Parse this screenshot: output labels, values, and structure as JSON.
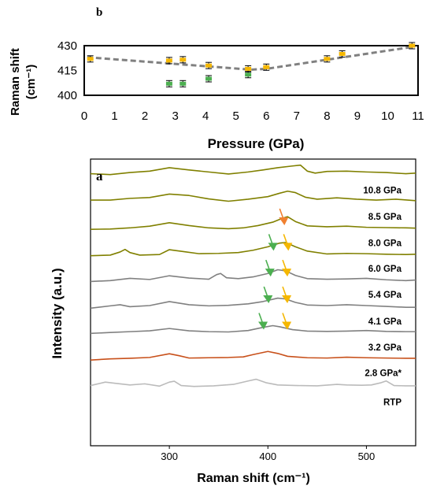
{
  "chart_data": [
    {
      "panel": "b",
      "type": "scatter",
      "xlabel": "Pressure (GPa)",
      "ylabel": "Raman shift (cm⁻¹)",
      "ylabel_line1": "Raman shift",
      "ylabel_line2": "(cm⁻¹)",
      "xlim": [
        0,
        11
      ],
      "ylim": [
        400,
        430
      ],
      "xticks": [
        0,
        1,
        2,
        3,
        4,
        5,
        6,
        7,
        8,
        9,
        10,
        11
      ],
      "yticks": [
        400,
        415,
        430
      ],
      "series": [
        {
          "color": "#f5b700",
          "marker": "square-errorbar",
          "points": [
            [
              0.2,
              422
            ],
            [
              2.8,
              421
            ],
            [
              3.25,
              421.5
            ],
            [
              4.1,
              418
            ],
            [
              5.4,
              416
            ],
            [
              6.0,
              417
            ],
            [
              8.0,
              422
            ],
            [
              8.5,
              425
            ],
            [
              10.8,
              430
            ]
          ]
        },
        {
          "color": "#4caf50",
          "marker": "square-errorbar",
          "points": [
            [
              2.8,
              407
            ],
            [
              3.25,
              407
            ],
            [
              4.1,
              410
            ],
            [
              5.4,
              412.5
            ]
          ]
        }
      ],
      "trend_line": {
        "color": "#808080",
        "style": "dashed",
        "points": [
          [
            0.1,
            423
          ],
          [
            5.5,
            415.5
          ],
          [
            6.0,
            416
          ],
          [
            10.9,
            429.5
          ]
        ]
      }
    },
    {
      "panel": "a",
      "type": "line",
      "xlabel": "Raman shift (cm⁻¹)",
      "ylabel": "Intensity (a.u.)",
      "xlim": [
        220,
        550
      ],
      "xticks": [
        300,
        400,
        500
      ],
      "series": [
        {
          "name": "10.8 GPa",
          "color": "#808000",
          "baseline": 0.935,
          "points": [
            [
              220,
              0.949
            ],
            [
              240,
              0.946
            ],
            [
              260,
              0.953
            ],
            [
              280,
              0.958
            ],
            [
              300,
              0.97
            ],
            [
              320,
              0.962
            ],
            [
              340,
              0.955
            ],
            [
              360,
              0.948
            ],
            [
              380,
              0.955
            ],
            [
              395,
              0.962
            ],
            [
              410,
              0.97
            ],
            [
              425,
              0.976
            ],
            [
              433,
              0.979
            ],
            [
              440,
              0.958
            ],
            [
              448,
              0.951
            ],
            [
              460,
              0.957
            ],
            [
              480,
              0.958
            ],
            [
              500,
              0.955
            ],
            [
              520,
              0.953
            ],
            [
              540,
              0.949
            ],
            [
              550,
              0.951
            ]
          ]
        },
        {
          "name": "8.5 GPa",
          "color": "#808000",
          "baseline": 0.843,
          "points": [
            [
              220,
              0.857
            ],
            [
              240,
              0.857
            ],
            [
              260,
              0.863
            ],
            [
              280,
              0.866
            ],
            [
              300,
              0.878
            ],
            [
              320,
              0.873
            ],
            [
              340,
              0.861
            ],
            [
              360,
              0.853
            ],
            [
              380,
              0.86
            ],
            [
              400,
              0.869
            ],
            [
              412,
              0.881
            ],
            [
              420,
              0.888
            ],
            [
              428,
              0.883
            ],
            [
              438,
              0.867
            ],
            [
              450,
              0.86
            ],
            [
              470,
              0.865
            ],
            [
              490,
              0.86
            ],
            [
              510,
              0.857
            ],
            [
              530,
              0.86
            ],
            [
              550,
              0.855
            ]
          ]
        },
        {
          "name": "8.0 GPa",
          "color": "#808000",
          "baseline": 0.752,
          "points": [
            [
              220,
              0.755
            ],
            [
              240,
              0.756
            ],
            [
              260,
              0.76
            ],
            [
              280,
              0.766
            ],
            [
              300,
              0.778
            ],
            [
              320,
              0.768
            ],
            [
              340,
              0.76
            ],
            [
              360,
              0.757
            ],
            [
              375,
              0.76
            ],
            [
              390,
              0.768
            ],
            [
              405,
              0.78
            ],
            [
              415,
              0.794
            ],
            [
              420,
              0.799
            ],
            [
              428,
              0.782
            ],
            [
              440,
              0.767
            ],
            [
              460,
              0.764
            ],
            [
              480,
              0.766
            ],
            [
              500,
              0.762
            ],
            [
              520,
              0.761
            ],
            [
              540,
              0.76
            ],
            [
              550,
              0.759
            ]
          ]
        },
        {
          "name": "6.0 GPa",
          "color": "#808000",
          "baseline": 0.662,
          "points": [
            [
              220,
              0.663
            ],
            [
              240,
              0.665
            ],
            [
              250,
              0.676
            ],
            [
              255,
              0.685
            ],
            [
              260,
              0.674
            ],
            [
              270,
              0.665
            ],
            [
              290,
              0.667
            ],
            [
              300,
              0.684
            ],
            [
              315,
              0.677
            ],
            [
              330,
              0.67
            ],
            [
              350,
              0.671
            ],
            [
              370,
              0.674
            ],
            [
              385,
              0.682
            ],
            [
              400,
              0.694
            ],
            [
              412,
              0.707
            ],
            [
              418,
              0.709
            ],
            [
              428,
              0.694
            ],
            [
              440,
              0.679
            ],
            [
              460,
              0.669
            ],
            [
              480,
              0.671
            ],
            [
              500,
              0.67
            ],
            [
              520,
              0.668
            ],
            [
              540,
              0.667
            ],
            [
              550,
              0.668
            ]
          ]
        },
        {
          "name": "5.4 GPa",
          "color": "#808080",
          "baseline": 0.571,
          "points": [
            [
              220,
              0.573
            ],
            [
              240,
              0.576
            ],
            [
              260,
              0.584
            ],
            [
              280,
              0.58
            ],
            [
              300,
              0.593
            ],
            [
              320,
              0.585
            ],
            [
              340,
              0.581
            ],
            [
              348,
              0.597
            ],
            [
              352,
              0.601
            ],
            [
              358,
              0.586
            ],
            [
              370,
              0.583
            ],
            [
              385,
              0.589
            ],
            [
              400,
              0.601
            ],
            [
              410,
              0.614
            ],
            [
              418,
              0.61
            ],
            [
              428,
              0.594
            ],
            [
              440,
              0.583
            ],
            [
              460,
              0.581
            ],
            [
              480,
              0.582
            ],
            [
              500,
              0.584
            ],
            [
              520,
              0.579
            ],
            [
              540,
              0.576
            ],
            [
              550,
              0.578
            ]
          ]
        },
        {
          "name": "4.1 GPa",
          "color": "#808080",
          "baseline": 0.478,
          "points": [
            [
              220,
              0.48
            ],
            [
              240,
              0.488
            ],
            [
              250,
              0.492
            ],
            [
              260,
              0.485
            ],
            [
              280,
              0.489
            ],
            [
              300,
              0.503
            ],
            [
              320,
              0.492
            ],
            [
              340,
              0.488
            ],
            [
              360,
              0.49
            ],
            [
              380,
              0.495
            ],
            [
              395,
              0.503
            ],
            [
              410,
              0.515
            ],
            [
              418,
              0.512
            ],
            [
              428,
              0.5
            ],
            [
              440,
              0.491
            ],
            [
              460,
              0.489
            ],
            [
              480,
              0.492
            ],
            [
              500,
              0.489
            ],
            [
              520,
              0.486
            ],
            [
              540,
              0.483
            ],
            [
              550,
              0.483
            ]
          ]
        },
        {
          "name": "3.2 GPa",
          "color": "#808080",
          "baseline": 0.388,
          "points": [
            [
              220,
              0.392
            ],
            [
              240,
              0.395
            ],
            [
              260,
              0.398
            ],
            [
              280,
              0.401
            ],
            [
              300,
              0.409
            ],
            [
              320,
              0.401
            ],
            [
              340,
              0.398
            ],
            [
              360,
              0.397
            ],
            [
              380,
              0.402
            ],
            [
              395,
              0.413
            ],
            [
              405,
              0.419
            ],
            [
              412,
              0.415
            ],
            [
              425,
              0.405
            ],
            [
              440,
              0.4
            ],
            [
              460,
              0.399
            ],
            [
              480,
              0.4
            ],
            [
              500,
              0.402
            ],
            [
              520,
              0.399
            ],
            [
              540,
              0.398
            ],
            [
              550,
              0.398
            ]
          ]
        },
        {
          "name": "2.8 GPa*",
          "color": "#c8501a",
          "baseline": 0.298,
          "points": [
            [
              220,
              0.299
            ],
            [
              240,
              0.303
            ],
            [
              260,
              0.305
            ],
            [
              280,
              0.308
            ],
            [
              300,
              0.321
            ],
            [
              310,
              0.314
            ],
            [
              320,
              0.306
            ],
            [
              340,
              0.307
            ],
            [
              360,
              0.308
            ],
            [
              375,
              0.31
            ],
            [
              385,
              0.318
            ],
            [
              400,
              0.329
            ],
            [
              410,
              0.322
            ],
            [
              420,
              0.312
            ],
            [
              440,
              0.307
            ],
            [
              460,
              0.306
            ],
            [
              480,
              0.309
            ],
            [
              500,
              0.307
            ],
            [
              520,
              0.306
            ],
            [
              540,
              0.305
            ],
            [
              550,
              0.305
            ]
          ]
        },
        {
          "name": "RTP",
          "color": "#bbbbbb",
          "baseline": 0.207,
          "points": [
            [
              220,
              0.21
            ],
            [
              235,
              0.222
            ],
            [
              245,
              0.218
            ],
            [
              260,
              0.212
            ],
            [
              275,
              0.216
            ],
            [
              290,
              0.208
            ],
            [
              300,
              0.222
            ],
            [
              305,
              0.225
            ],
            [
              312,
              0.21
            ],
            [
              325,
              0.207
            ],
            [
              345,
              0.209
            ],
            [
              365,
              0.214
            ],
            [
              380,
              0.226
            ],
            [
              388,
              0.232
            ],
            [
              398,
              0.22
            ],
            [
              410,
              0.212
            ],
            [
              430,
              0.21
            ],
            [
              450,
              0.209
            ],
            [
              470,
              0.214
            ],
            [
              480,
              0.212
            ],
            [
              495,
              0.211
            ],
            [
              505,
              0.212
            ],
            [
              515,
              0.22
            ],
            [
              520,
              0.226
            ],
            [
              528,
              0.21
            ],
            [
              540,
              0.209
            ],
            [
              550,
              0.209
            ]
          ]
        }
      ],
      "arrows": [
        {
          "color": "#f08030",
          "at": [
            416,
            0.772
          ],
          "direction": "down"
        },
        {
          "color": "#4caf50",
          "at": [
            405,
            0.683
          ],
          "direction": "down"
        },
        {
          "color": "#f5b700",
          "at": [
            420,
            0.683
          ],
          "direction": "down"
        },
        {
          "color": "#4caf50",
          "at": [
            402,
            0.593
          ],
          "direction": "down"
        },
        {
          "color": "#f5b700",
          "at": [
            419,
            0.593
          ],
          "direction": "down"
        },
        {
          "color": "#4caf50",
          "at": [
            400,
            0.5
          ],
          "direction": "down"
        },
        {
          "color": "#f5b700",
          "at": [
            419,
            0.5
          ],
          "direction": "down"
        },
        {
          "color": "#4caf50",
          "at": [
            395,
            0.408
          ],
          "direction": "down"
        },
        {
          "color": "#f5b700",
          "at": [
            419,
            0.408
          ],
          "direction": "down"
        }
      ]
    }
  ]
}
